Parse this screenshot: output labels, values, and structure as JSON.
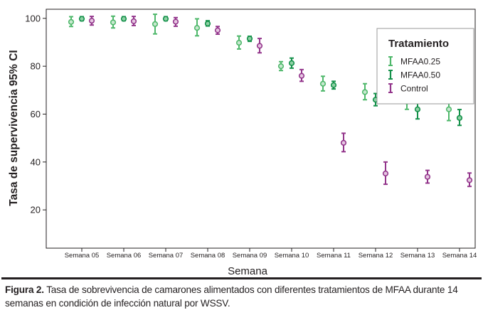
{
  "chart_data": {
    "type": "scatter",
    "error_bars": true,
    "title": "",
    "xlabel": "Semana",
    "ylabel": "Tasa de supervivencia 95% CI",
    "ylim": [
      15,
      115
    ],
    "yticks": [
      20,
      40,
      60,
      80,
      100
    ],
    "grid": false,
    "legend_position": "top-right",
    "legend_title": "Tratamiento",
    "categories": [
      "Semana 05",
      "Semana 06",
      "Semana 07",
      "Semana 08",
      "Semana 09",
      "Semana 10",
      "Semana 11",
      "Semana 12",
      "Semana 13",
      "Semana 14"
    ],
    "series": [
      {
        "name": "MFAA0.25",
        "color": "#4fb86b",
        "marker_fill": "#c7e8cf",
        "mean": [
          98.5,
          98.3,
          97.6,
          96.0,
          89.8,
          80.0,
          72.7,
          69.2,
          65.2,
          62.0
        ],
        "lower": [
          96.6,
          96.0,
          93.5,
          92.7,
          87.2,
          78.2,
          69.7,
          66.0,
          62.0,
          57.3
        ],
        "upper": [
          100.7,
          100.9,
          101.7,
          99.8,
          92.6,
          81.9,
          75.8,
          72.7,
          68.4,
          67.0
        ]
      },
      {
        "name": "MFAA0.50",
        "color": "#14914a",
        "marker_fill": "#8fd1a5",
        "mean": [
          99.8,
          99.8,
          99.8,
          97.8,
          91.5,
          81.3,
          72.1,
          66.0,
          62.0,
          58.4
        ],
        "lower": [
          99.0,
          99.0,
          99.0,
          96.8,
          90.4,
          79.2,
          70.5,
          63.5,
          58.0,
          55.3
        ],
        "upper": [
          100.7,
          100.7,
          100.7,
          99.0,
          92.5,
          83.4,
          73.7,
          68.6,
          65.9,
          61.9
        ]
      },
      {
        "name": "Control",
        "color": "#93358b",
        "marker_fill": "#e6c7e2",
        "mean": [
          99.0,
          98.8,
          98.6,
          95.0,
          88.5,
          76.0,
          48.0,
          35.2,
          33.8,
          32.4
        ],
        "lower": [
          97.2,
          97.0,
          96.7,
          93.4,
          85.6,
          73.7,
          44.3,
          30.7,
          31.2,
          29.8
        ],
        "upper": [
          100.8,
          100.8,
          100.3,
          96.6,
          91.6,
          78.6,
          52.0,
          40.0,
          36.5,
          35.4
        ]
      }
    ]
  },
  "caption": {
    "label": "Figura 2.",
    "text": "Tasa de sobrevivencia de camarones alimentados con diferentes tratamientos de MFAA durante 14 semanas en condición de infección natural por WSSV."
  }
}
